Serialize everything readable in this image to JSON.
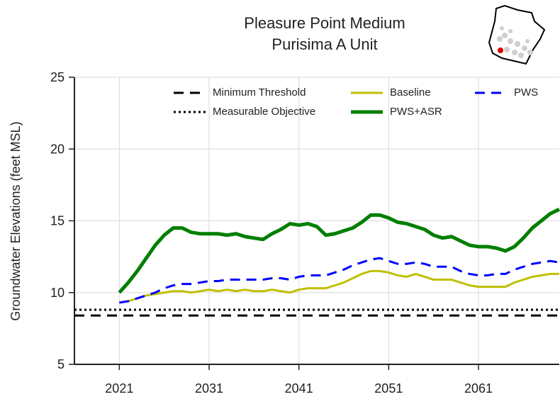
{
  "chart_data": {
    "type": "line",
    "title": [
      "Pleasure Point Medium",
      "Purisima A Unit"
    ],
    "y_label": "Groundwater Elevations (feet MSL)",
    "x": [
      2021,
      2022,
      2023,
      2024,
      2025,
      2026,
      2027,
      2028,
      2029,
      2030,
      2031,
      2032,
      2033,
      2034,
      2035,
      2036,
      2037,
      2038,
      2039,
      2040,
      2041,
      2042,
      2043,
      2044,
      2045,
      2046,
      2047,
      2048,
      2049,
      2050,
      2051,
      2052,
      2053,
      2054,
      2055,
      2056,
      2057,
      2058,
      2059,
      2060,
      2061,
      2062,
      2063,
      2064,
      2065,
      2066,
      2067,
      2068,
      2069,
      2070
    ],
    "xlim": [
      2016,
      2070
    ],
    "xticks": [
      2021,
      2031,
      2041,
      2051,
      2061
    ],
    "ylim": [
      5,
      25
    ],
    "yticks": [
      5,
      10,
      15,
      20,
      25
    ],
    "grid": true,
    "reference_lines": [
      {
        "name": "Minimum Threshold",
        "value": 8.4,
        "color": "#000000",
        "style": "dashed"
      },
      {
        "name": "Measurable Objective",
        "value": 8.8,
        "color": "#000000",
        "style": "dotted"
      }
    ],
    "series": [
      {
        "name": "Baseline",
        "color": "#bfbf00",
        "width": 3,
        "style": "solid",
        "values": [
          9.3,
          9.4,
          9.6,
          9.8,
          9.9,
          10.0,
          10.1,
          10.1,
          10.0,
          10.1,
          10.2,
          10.1,
          10.2,
          10.1,
          10.2,
          10.1,
          10.1,
          10.2,
          10.1,
          10.0,
          10.2,
          10.3,
          10.3,
          10.3,
          10.5,
          10.7,
          11.0,
          11.3,
          11.5,
          11.5,
          11.4,
          11.2,
          11.1,
          11.3,
          11.1,
          10.9,
          10.9,
          10.9,
          10.7,
          10.5,
          10.4,
          10.4,
          10.4,
          10.4,
          10.7,
          10.9,
          11.1,
          11.2,
          11.3,
          11.3
        ]
      },
      {
        "name": "PWS+ASR",
        "color": "#007f00",
        "width": 5,
        "style": "solid",
        "values": [
          10.0,
          10.7,
          11.5,
          12.4,
          13.3,
          14.0,
          14.5,
          14.5,
          14.2,
          14.1,
          14.1,
          14.1,
          14.0,
          14.1,
          13.9,
          13.8,
          13.7,
          14.1,
          14.4,
          14.8,
          14.7,
          14.8,
          14.6,
          14.0,
          14.1,
          14.3,
          14.5,
          14.9,
          15.4,
          15.4,
          15.2,
          14.9,
          14.8,
          14.6,
          14.4,
          14.0,
          13.8,
          13.9,
          13.6,
          13.3,
          13.2,
          13.2,
          13.1,
          12.9,
          13.2,
          13.8,
          14.5,
          15.0,
          15.5,
          15.8
        ]
      },
      {
        "name": "PWS",
        "color": "#0000ff",
        "width": 3,
        "style": "dashed",
        "values": [
          9.3,
          9.4,
          9.6,
          9.8,
          10.0,
          10.3,
          10.5,
          10.6,
          10.6,
          10.7,
          10.8,
          10.8,
          10.9,
          10.9,
          10.9,
          10.9,
          10.9,
          11.0,
          11.0,
          10.9,
          11.1,
          11.2,
          11.2,
          11.2,
          11.4,
          11.6,
          11.9,
          12.1,
          12.3,
          12.4,
          12.2,
          12.0,
          12.0,
          12.1,
          12.0,
          11.8,
          11.8,
          11.8,
          11.5,
          11.3,
          11.2,
          11.2,
          11.3,
          11.3,
          11.6,
          11.8,
          12.0,
          12.1,
          12.2,
          12.1
        ]
      }
    ]
  }
}
